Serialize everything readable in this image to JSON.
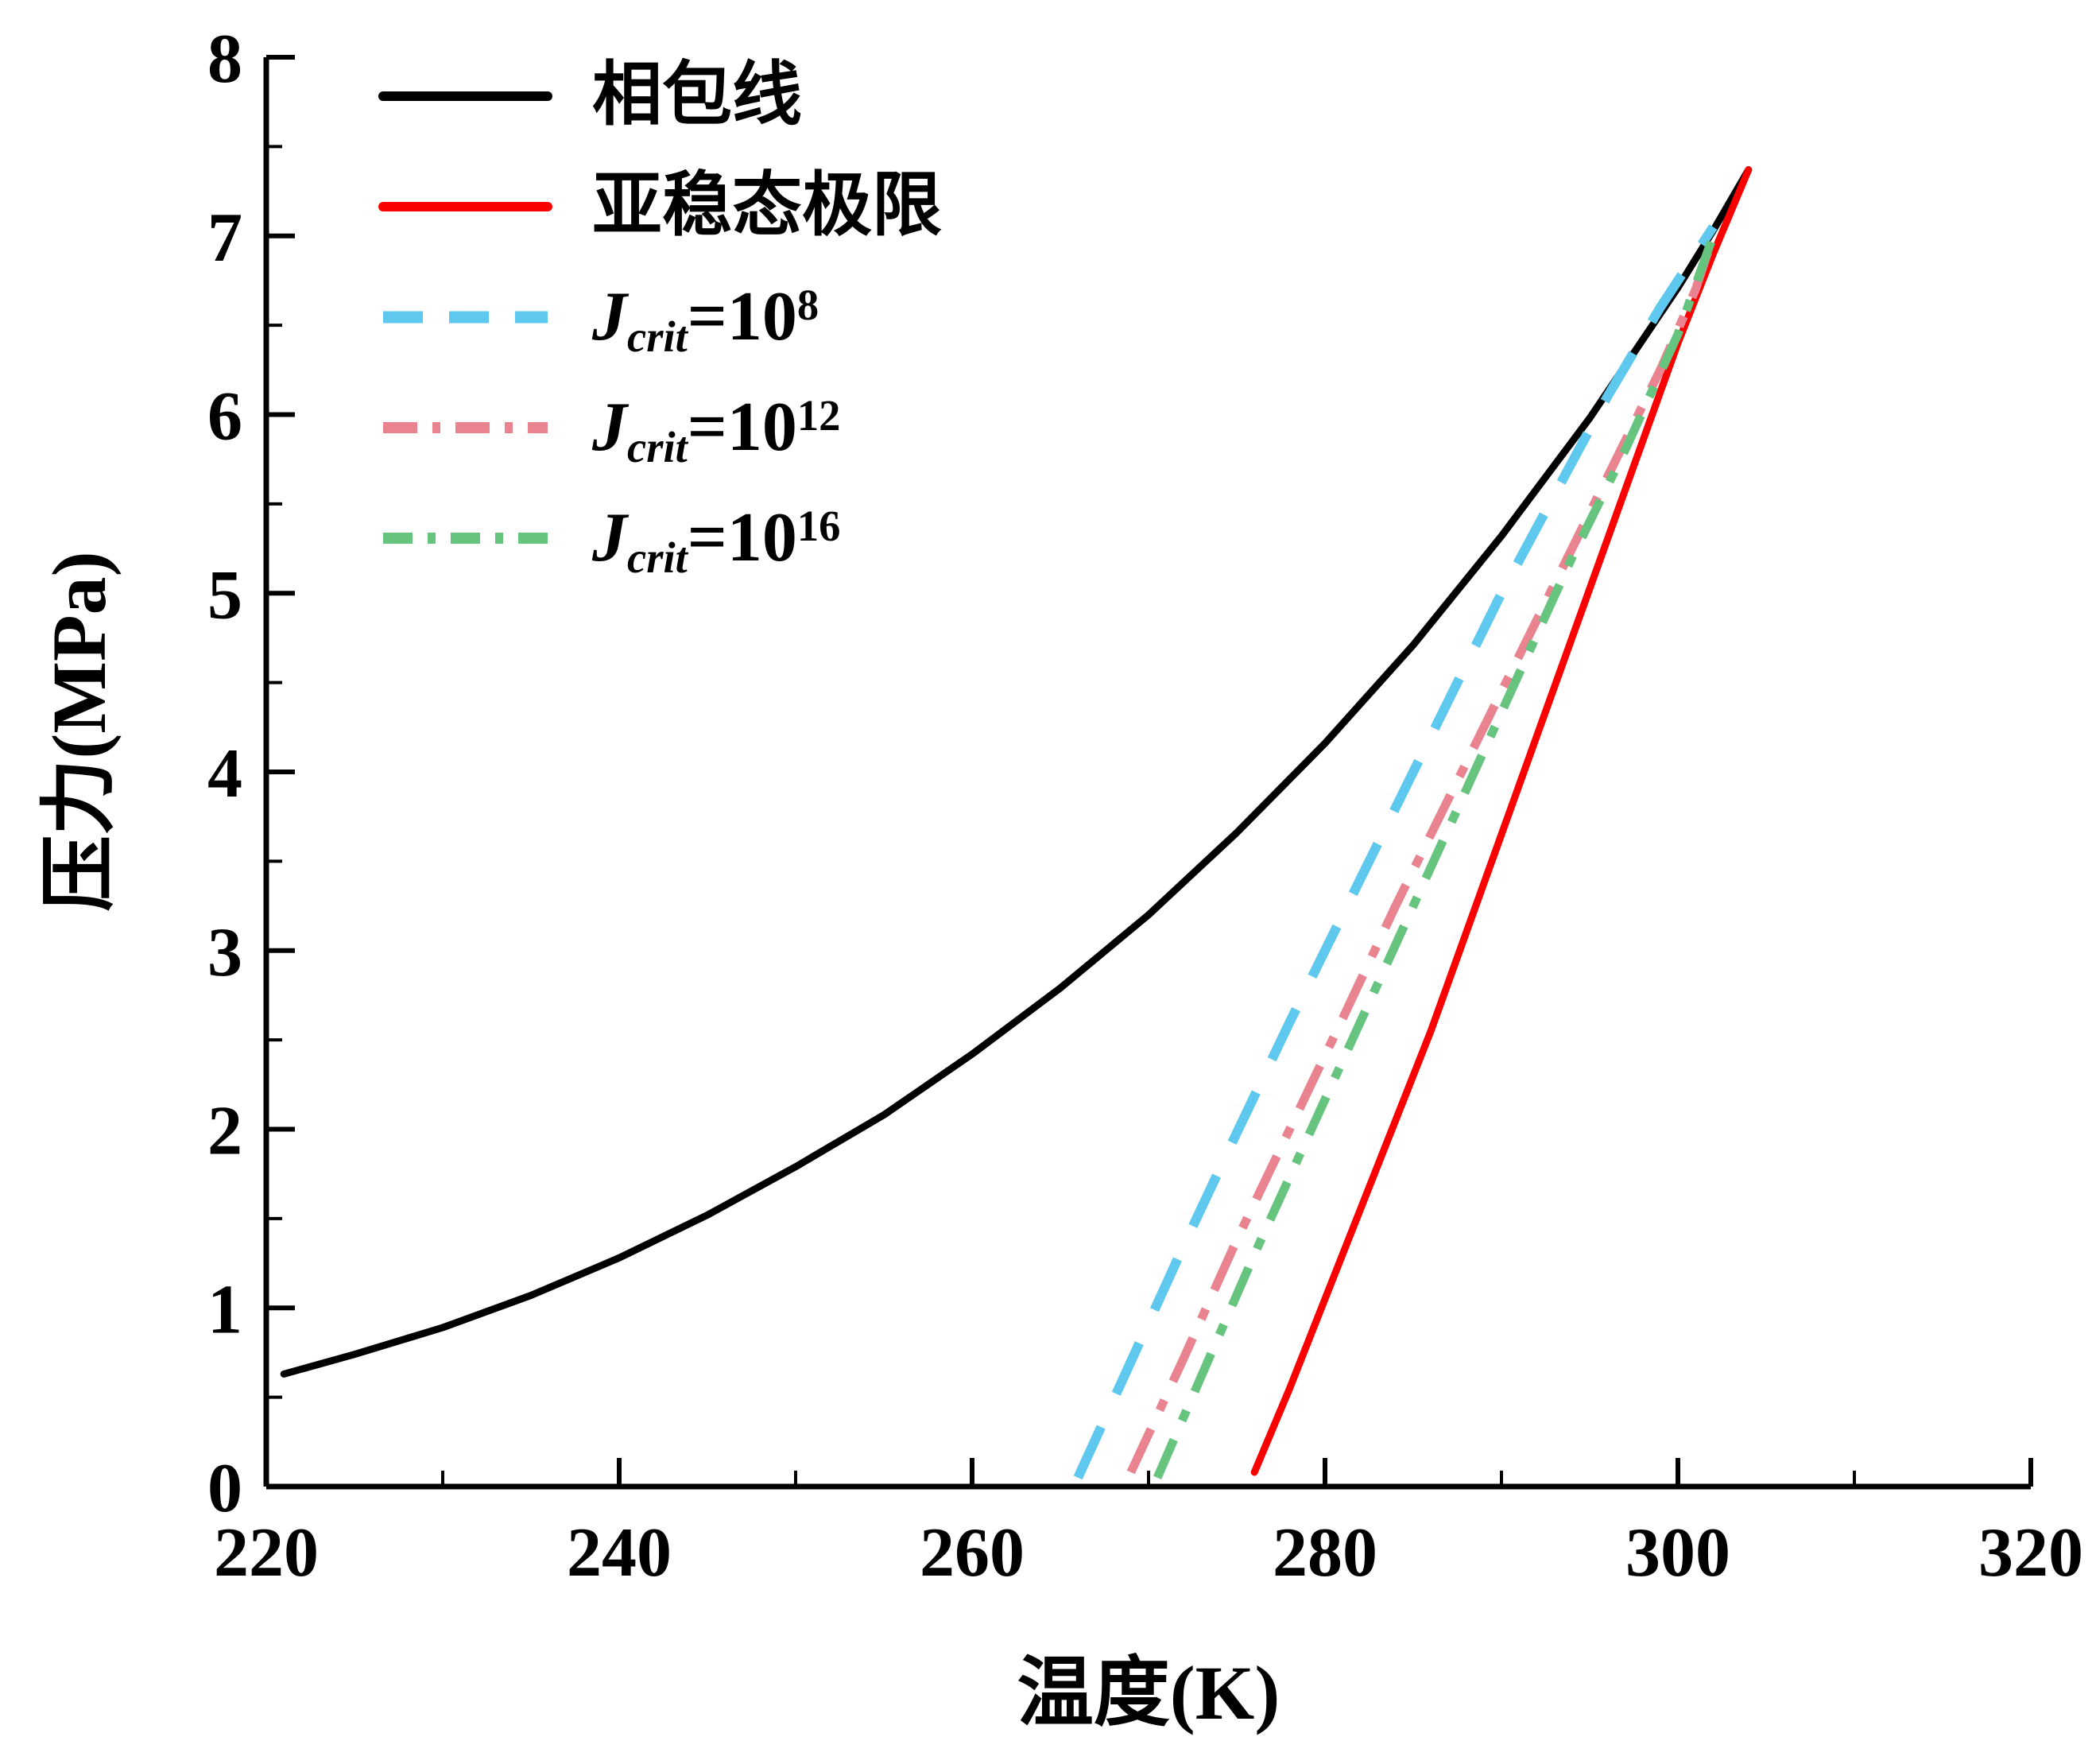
{
  "chart_data": {
    "type": "line",
    "title": "",
    "xlabel": "温度(K)",
    "ylabel": "压力(MPa)",
    "xlim": [
      220,
      320
    ],
    "ylim": [
      0,
      8
    ],
    "xticks": [
      220,
      240,
      260,
      280,
      300,
      320
    ],
    "yticks": [
      0,
      1,
      2,
      3,
      4,
      5,
      6,
      7,
      8
    ],
    "x_minor_step": 10,
    "y_minor_step": 0.5,
    "grid": false,
    "legend_position": "top-left",
    "series": [
      {
        "name": "相包线",
        "color": "#000000",
        "style": "solid",
        "width": 9,
        "dash": null,
        "points": [
          [
            221,
            0.63
          ],
          [
            225,
            0.74
          ],
          [
            230,
            0.89
          ],
          [
            235,
            1.07
          ],
          [
            240,
            1.28
          ],
          [
            245,
            1.52
          ],
          [
            250,
            1.79
          ],
          [
            255,
            2.08
          ],
          [
            260,
            2.42
          ],
          [
            265,
            2.79
          ],
          [
            270,
            3.2
          ],
          [
            275,
            3.66
          ],
          [
            280,
            4.16
          ],
          [
            285,
            4.71
          ],
          [
            290,
            5.32
          ],
          [
            295,
            5.98
          ],
          [
            300,
            6.71
          ],
          [
            302,
            7.03
          ],
          [
            304,
            7.37
          ]
        ]
      },
      {
        "name": "亚稳态极限",
        "color": "#fa0000",
        "style": "solid",
        "width": 9,
        "dash": null,
        "points": [
          [
            276,
            0.08
          ],
          [
            278,
            0.55
          ],
          [
            280,
            1.05
          ],
          [
            282,
            1.55
          ],
          [
            284,
            2.05
          ],
          [
            286,
            2.55
          ],
          [
            288,
            3.1
          ],
          [
            290,
            3.65
          ],
          [
            292,
            4.2
          ],
          [
            294,
            4.75
          ],
          [
            296,
            5.3
          ],
          [
            298,
            5.85
          ],
          [
            300,
            6.4
          ],
          [
            302,
            6.9
          ],
          [
            304,
            7.37
          ]
        ]
      },
      {
        "name": "Jcrit=10^8",
        "color": "#5ec8ee",
        "style": "dashed",
        "width": 12,
        "dash": "70 46",
        "points": [
          [
            266,
            0.05
          ],
          [
            269,
            0.7
          ],
          [
            272,
            1.35
          ],
          [
            275,
            1.98
          ],
          [
            278,
            2.6
          ],
          [
            281,
            3.2
          ],
          [
            284,
            3.8
          ],
          [
            287,
            4.4
          ],
          [
            290,
            5.0
          ],
          [
            293,
            5.55
          ],
          [
            296,
            6.1
          ],
          [
            299,
            6.6
          ],
          [
            301,
            6.9
          ],
          [
            302,
            7.05
          ]
        ]
      },
      {
        "name": "Jcrit=10^12",
        "color": "#e8838f",
        "style": "dash-dot",
        "width": 11,
        "dash": "60 26 14 26",
        "points": [
          [
            269,
            0.08
          ],
          [
            272,
            0.72
          ],
          [
            275,
            1.38
          ],
          [
            278,
            2.0
          ],
          [
            281,
            2.62
          ],
          [
            284,
            3.25
          ],
          [
            287,
            3.85
          ],
          [
            290,
            4.45
          ],
          [
            293,
            5.05
          ],
          [
            296,
            5.65
          ],
          [
            299,
            6.25
          ],
          [
            301,
            6.7
          ],
          [
            302,
            7.0
          ]
        ]
      },
      {
        "name": "Jcrit=10^16",
        "color": "#66c47e",
        "style": "dash-dot",
        "width": 11,
        "dash": "52 26 14 26",
        "points": [
          [
            270.5,
            0.05
          ],
          [
            273,
            0.62
          ],
          [
            276,
            1.3
          ],
          [
            279,
            1.95
          ],
          [
            282,
            2.6
          ],
          [
            285,
            3.25
          ],
          [
            288,
            3.9
          ],
          [
            291,
            4.55
          ],
          [
            294,
            5.2
          ],
          [
            297,
            5.8
          ],
          [
            300,
            6.45
          ],
          [
            302,
            7.0
          ]
        ]
      }
    ]
  },
  "legend": {
    "items": [
      {
        "label": "相包线"
      },
      {
        "label": "亚稳态极限"
      },
      {
        "var": "J",
        "sub": "crit",
        "eq": "=10",
        "exp": "8"
      },
      {
        "var": "J",
        "sub": "crit",
        "eq": "=10",
        "exp": "12"
      },
      {
        "var": "J",
        "sub": "crit",
        "eq": "=10",
        "exp": "16"
      }
    ]
  }
}
